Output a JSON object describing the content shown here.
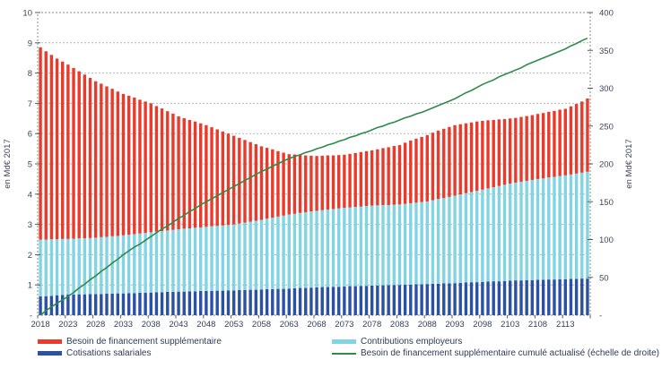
{
  "chart_data": {
    "type": "combo-stacked-bar-line",
    "title": "",
    "x": {
      "years": [
        2018,
        2019,
        2020,
        2021,
        2022,
        2023,
        2024,
        2025,
        2026,
        2027,
        2028,
        2029,
        2030,
        2031,
        2032,
        2033,
        2034,
        2035,
        2036,
        2037,
        2038,
        2039,
        2040,
        2041,
        2042,
        2043,
        2044,
        2045,
        2046,
        2047,
        2048,
        2049,
        2050,
        2051,
        2052,
        2053,
        2054,
        2055,
        2056,
        2057,
        2058,
        2059,
        2060,
        2061,
        2062,
        2063,
        2064,
        2065,
        2066,
        2067,
        2068,
        2069,
        2070,
        2071,
        2072,
        2073,
        2074,
        2075,
        2076,
        2077,
        2078,
        2079,
        2080,
        2081,
        2082,
        2083,
        2084,
        2085,
        2086,
        2087,
        2088,
        2089,
        2090,
        2091,
        2092,
        2093,
        2094,
        2095,
        2096,
        2097,
        2098,
        2099,
        2100,
        2101,
        2102,
        2103,
        2104,
        2105,
        2106,
        2107,
        2108,
        2109,
        2110,
        2111,
        2112,
        2113,
        2114,
        2115,
        2116,
        2117
      ],
      "tick_labels": [
        "2018",
        "2023",
        "2028",
        "2033",
        "2038",
        "2043",
        "2048",
        "2053",
        "2058",
        "2063",
        "2068",
        "2073",
        "2078",
        "2083",
        "2088",
        "2093",
        "2098",
        "2103",
        "2108",
        "2113"
      ]
    },
    "left_axis": {
      "label": "en Md€ 2017",
      "min": 0,
      "max": 10,
      "step": 1,
      "tick_labels": [
        "10",
        "9",
        "8",
        "7",
        "6",
        "5",
        "4",
        "3",
        "2",
        "1",
        "-"
      ]
    },
    "right_axis": {
      "label": "en Md€ 2017",
      "min": 0,
      "max": 400,
      "step": 50,
      "tick_labels": [
        "400",
        "350",
        "300",
        "250",
        "200",
        "150",
        "100",
        "50",
        "-"
      ]
    },
    "grid": {
      "gridline_color": "#b5b5b5",
      "border_color": "#8a8a8a",
      "tick_color": "#5a5a5a"
    },
    "series": [
      {
        "id": "cotisations",
        "name": "Cotisations salariales",
        "type": "bar",
        "axis": "left",
        "color": "#2b51a5",
        "values": [
          0.62,
          0.63,
          0.64,
          0.66,
          0.67,
          0.68,
          0.68,
          0.69,
          0.69,
          0.7,
          0.7,
          0.7,
          0.71,
          0.71,
          0.72,
          0.72,
          0.73,
          0.73,
          0.74,
          0.74,
          0.75,
          0.76,
          0.76,
          0.77,
          0.77,
          0.78,
          0.78,
          0.79,
          0.79,
          0.8,
          0.8,
          0.8,
          0.81,
          0.81,
          0.82,
          0.82,
          0.83,
          0.83,
          0.84,
          0.84,
          0.85,
          0.86,
          0.86,
          0.87,
          0.87,
          0.88,
          0.89,
          0.9,
          0.9,
          0.91,
          0.92,
          0.93,
          0.93,
          0.94,
          0.94,
          0.95,
          0.96,
          0.96,
          0.97,
          0.97,
          0.98,
          0.98,
          0.99,
          0.99,
          1.0,
          1.0,
          1.01,
          1.01,
          1.02,
          1.02,
          1.03,
          1.04,
          1.04,
          1.05,
          1.05,
          1.06,
          1.07,
          1.08,
          1.09,
          1.09,
          1.1,
          1.11,
          1.12,
          1.12,
          1.13,
          1.14,
          1.15,
          1.15,
          1.16,
          1.16,
          1.17,
          1.17,
          1.18,
          1.18,
          1.19,
          1.19,
          1.2,
          1.2,
          1.21,
          1.21
        ]
      },
      {
        "id": "contributions",
        "name": "Contributions employeurs",
        "type": "bar",
        "axis": "left",
        "color": "#82d4e3",
        "values": [
          1.88,
          1.87,
          1.87,
          1.85,
          1.85,
          1.84,
          1.85,
          1.85,
          1.85,
          1.85,
          1.86,
          1.88,
          1.88,
          1.9,
          1.9,
          1.92,
          1.93,
          1.95,
          1.96,
          1.98,
          1.99,
          2.0,
          2.02,
          2.03,
          2.05,
          2.06,
          2.08,
          2.08,
          2.1,
          2.1,
          2.12,
          2.14,
          2.14,
          2.16,
          2.16,
          2.18,
          2.2,
          2.23,
          2.25,
          2.28,
          2.3,
          2.33,
          2.36,
          2.39,
          2.42,
          2.45,
          2.46,
          2.48,
          2.5,
          2.52,
          2.53,
          2.54,
          2.56,
          2.57,
          2.59,
          2.6,
          2.6,
          2.62,
          2.62,
          2.64,
          2.64,
          2.65,
          2.65,
          2.65,
          2.65,
          2.66,
          2.67,
          2.69,
          2.7,
          2.72,
          2.73,
          2.76,
          2.8,
          2.82,
          2.86,
          2.89,
          2.92,
          2.95,
          2.98,
          3.02,
          3.05,
          3.08,
          3.11,
          3.15,
          3.18,
          3.21,
          3.23,
          3.26,
          3.28,
          3.31,
          3.33,
          3.35,
          3.37,
          3.39,
          3.41,
          3.43,
          3.45,
          3.48,
          3.5,
          3.53
        ]
      },
      {
        "id": "besoin",
        "name": "Besoin de financement supplémentaire",
        "type": "bar",
        "axis": "left",
        "color": "#e93a2b",
        "values": [
          6.35,
          6.22,
          6.09,
          5.97,
          5.86,
          5.76,
          5.64,
          5.52,
          5.41,
          5.29,
          5.17,
          5.07,
          4.97,
          4.87,
          4.77,
          4.67,
          4.59,
          4.51,
          4.42,
          4.34,
          4.26,
          4.15,
          4.05,
          3.94,
          3.84,
          3.73,
          3.65,
          3.58,
          3.51,
          3.44,
          3.36,
          3.27,
          3.19,
          3.1,
          3.02,
          2.93,
          2.83,
          2.73,
          2.63,
          2.53,
          2.43,
          2.34,
          2.26,
          2.16,
          2.08,
          1.99,
          1.96,
          1.92,
          1.88,
          1.84,
          1.81,
          1.8,
          1.79,
          1.77,
          1.76,
          1.75,
          1.77,
          1.78,
          1.8,
          1.81,
          1.83,
          1.85,
          1.88,
          1.91,
          1.94,
          1.96,
          2.02,
          2.07,
          2.11,
          2.15,
          2.19,
          2.23,
          2.26,
          2.29,
          2.31,
          2.33,
          2.32,
          2.31,
          2.3,
          2.29,
          2.27,
          2.25,
          2.22,
          2.2,
          2.17,
          2.15,
          2.14,
          2.14,
          2.14,
          2.14,
          2.15,
          2.16,
          2.17,
          2.18,
          2.19,
          2.2,
          2.25,
          2.3,
          2.35,
          2.42
        ]
      },
      {
        "id": "cumule",
        "name": "Besoin de financement supplémentaire cumulé actualisé (échelle de droite)",
        "type": "line",
        "axis": "right",
        "color": "#2e8b4a",
        "values": [
          0,
          6,
          11,
          16,
          20,
          25,
          30,
          36,
          41,
          47,
          52,
          58,
          63,
          69,
          74,
          80,
          85,
          90,
          94,
          99,
          104,
          109,
          114,
          118,
          123,
          128,
          132,
          137,
          141,
          146,
          150,
          154,
          158,
          162,
          166,
          170,
          174,
          178,
          182,
          186,
          190,
          193,
          197,
          200,
          204,
          207,
          210,
          212,
          215,
          217,
          220,
          222,
          225,
          227,
          230,
          232,
          235,
          237,
          240,
          242,
          245,
          248,
          250,
          253,
          255,
          258,
          261,
          263,
          266,
          268,
          271,
          274,
          277,
          280,
          283,
          286,
          290,
          294,
          297,
          301,
          305,
          308,
          311,
          315,
          318,
          321,
          324,
          327,
          331,
          334,
          337,
          340,
          343,
          346,
          349,
          352,
          356,
          359,
          363,
          366
        ]
      }
    ],
    "legend": {
      "columns": [
        [
          "besoin",
          "cotisations"
        ],
        [
          "contributions",
          "cumule"
        ]
      ],
      "position": "bottom"
    }
  }
}
